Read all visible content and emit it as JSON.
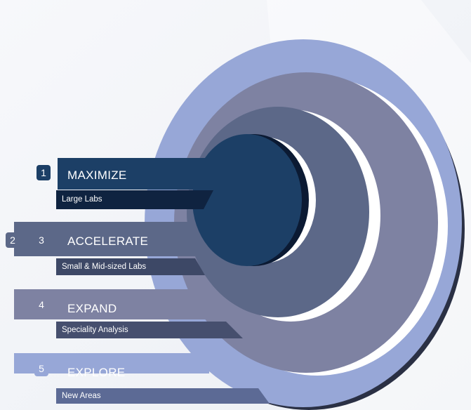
{
  "colors": {
    "tier1": "#1c3f66",
    "tier2": "#5c6888",
    "tier3": "#7e82a2",
    "tier4": "#97a7d7",
    "subbar": "#0f2340"
  },
  "tiers": [
    {
      "numbers": [
        "1"
      ],
      "title": "MAXIMIZE",
      "subtitle": "Large Labs"
    },
    {
      "numbers": [
        "2",
        "3"
      ],
      "title": "ACCELERATE",
      "subtitle": "Small & Mid-sized Labs"
    },
    {
      "numbers": [
        "4"
      ],
      "title": "EXPAND",
      "subtitle": "Speciality Analysis"
    },
    {
      "numbers": [
        "5"
      ],
      "title": "EXPLORE",
      "subtitle": "New Areas"
    }
  ]
}
